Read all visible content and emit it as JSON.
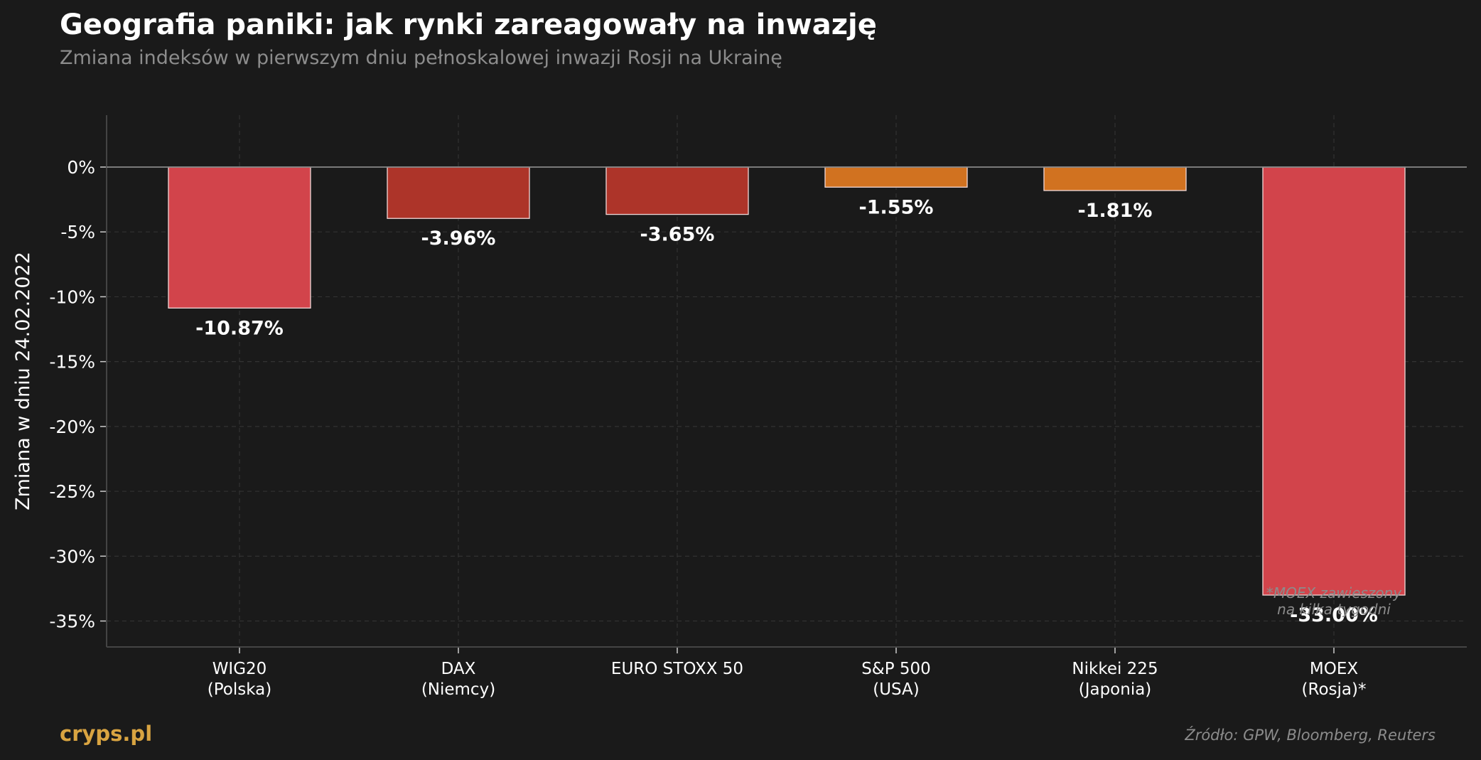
{
  "header": {
    "title": "Geografia paniki: jak rynki zareagowały na inwazję",
    "subtitle": "Zmiana indeksów w pierwszym dniu pełnoskalowej inwazji Rosji na Ukrainę"
  },
  "footer": {
    "brand": "cryps.pl",
    "source": "Źródło: GPW, Bloomberg, Reuters"
  },
  "chart_data": {
    "type": "bar",
    "categories": [
      [
        "WIG20",
        "(Polska)"
      ],
      [
        "DAX",
        "(Niemcy)"
      ],
      [
        "EURO STOXX 50"
      ],
      [
        "S&P 500",
        "(USA)"
      ],
      [
        "Nikkei 225",
        "(Japonia)"
      ],
      [
        "MOEX",
        "(Rosja)*"
      ]
    ],
    "values": [
      -10.87,
      -3.96,
      -3.65,
      -1.55,
      -1.81,
      -33.0
    ],
    "value_labels": [
      "-10.87%",
      "-3.96%",
      "-3.65%",
      "-1.55%",
      "-1.81%",
      "-33.00%"
    ],
    "bar_colors": [
      "#d2444b",
      "#ad3429",
      "#ad3429",
      "#d17220",
      "#d17220",
      "#d2444b"
    ],
    "ylabel": "Zmiana w dniu 24.02.2022",
    "ylim": [
      -37,
      4
    ],
    "yticks": [
      0,
      -5,
      -10,
      -15,
      -20,
      -25,
      -30,
      -35
    ],
    "ytick_labels": [
      "0%",
      "-5%",
      "-10%",
      "-15%",
      "-20%",
      "-25%",
      "-30%",
      "-35%"
    ],
    "grid": true,
    "note": [
      "*MOEX zawieszony",
      "na kilka tygodni"
    ]
  },
  "colors": {
    "background": "#1a1a1a",
    "grid": "#333333",
    "axis": "#444444",
    "zero_line": "#888888",
    "bar_edge": "#f0d8d8",
    "brand": "#d9a441"
  }
}
